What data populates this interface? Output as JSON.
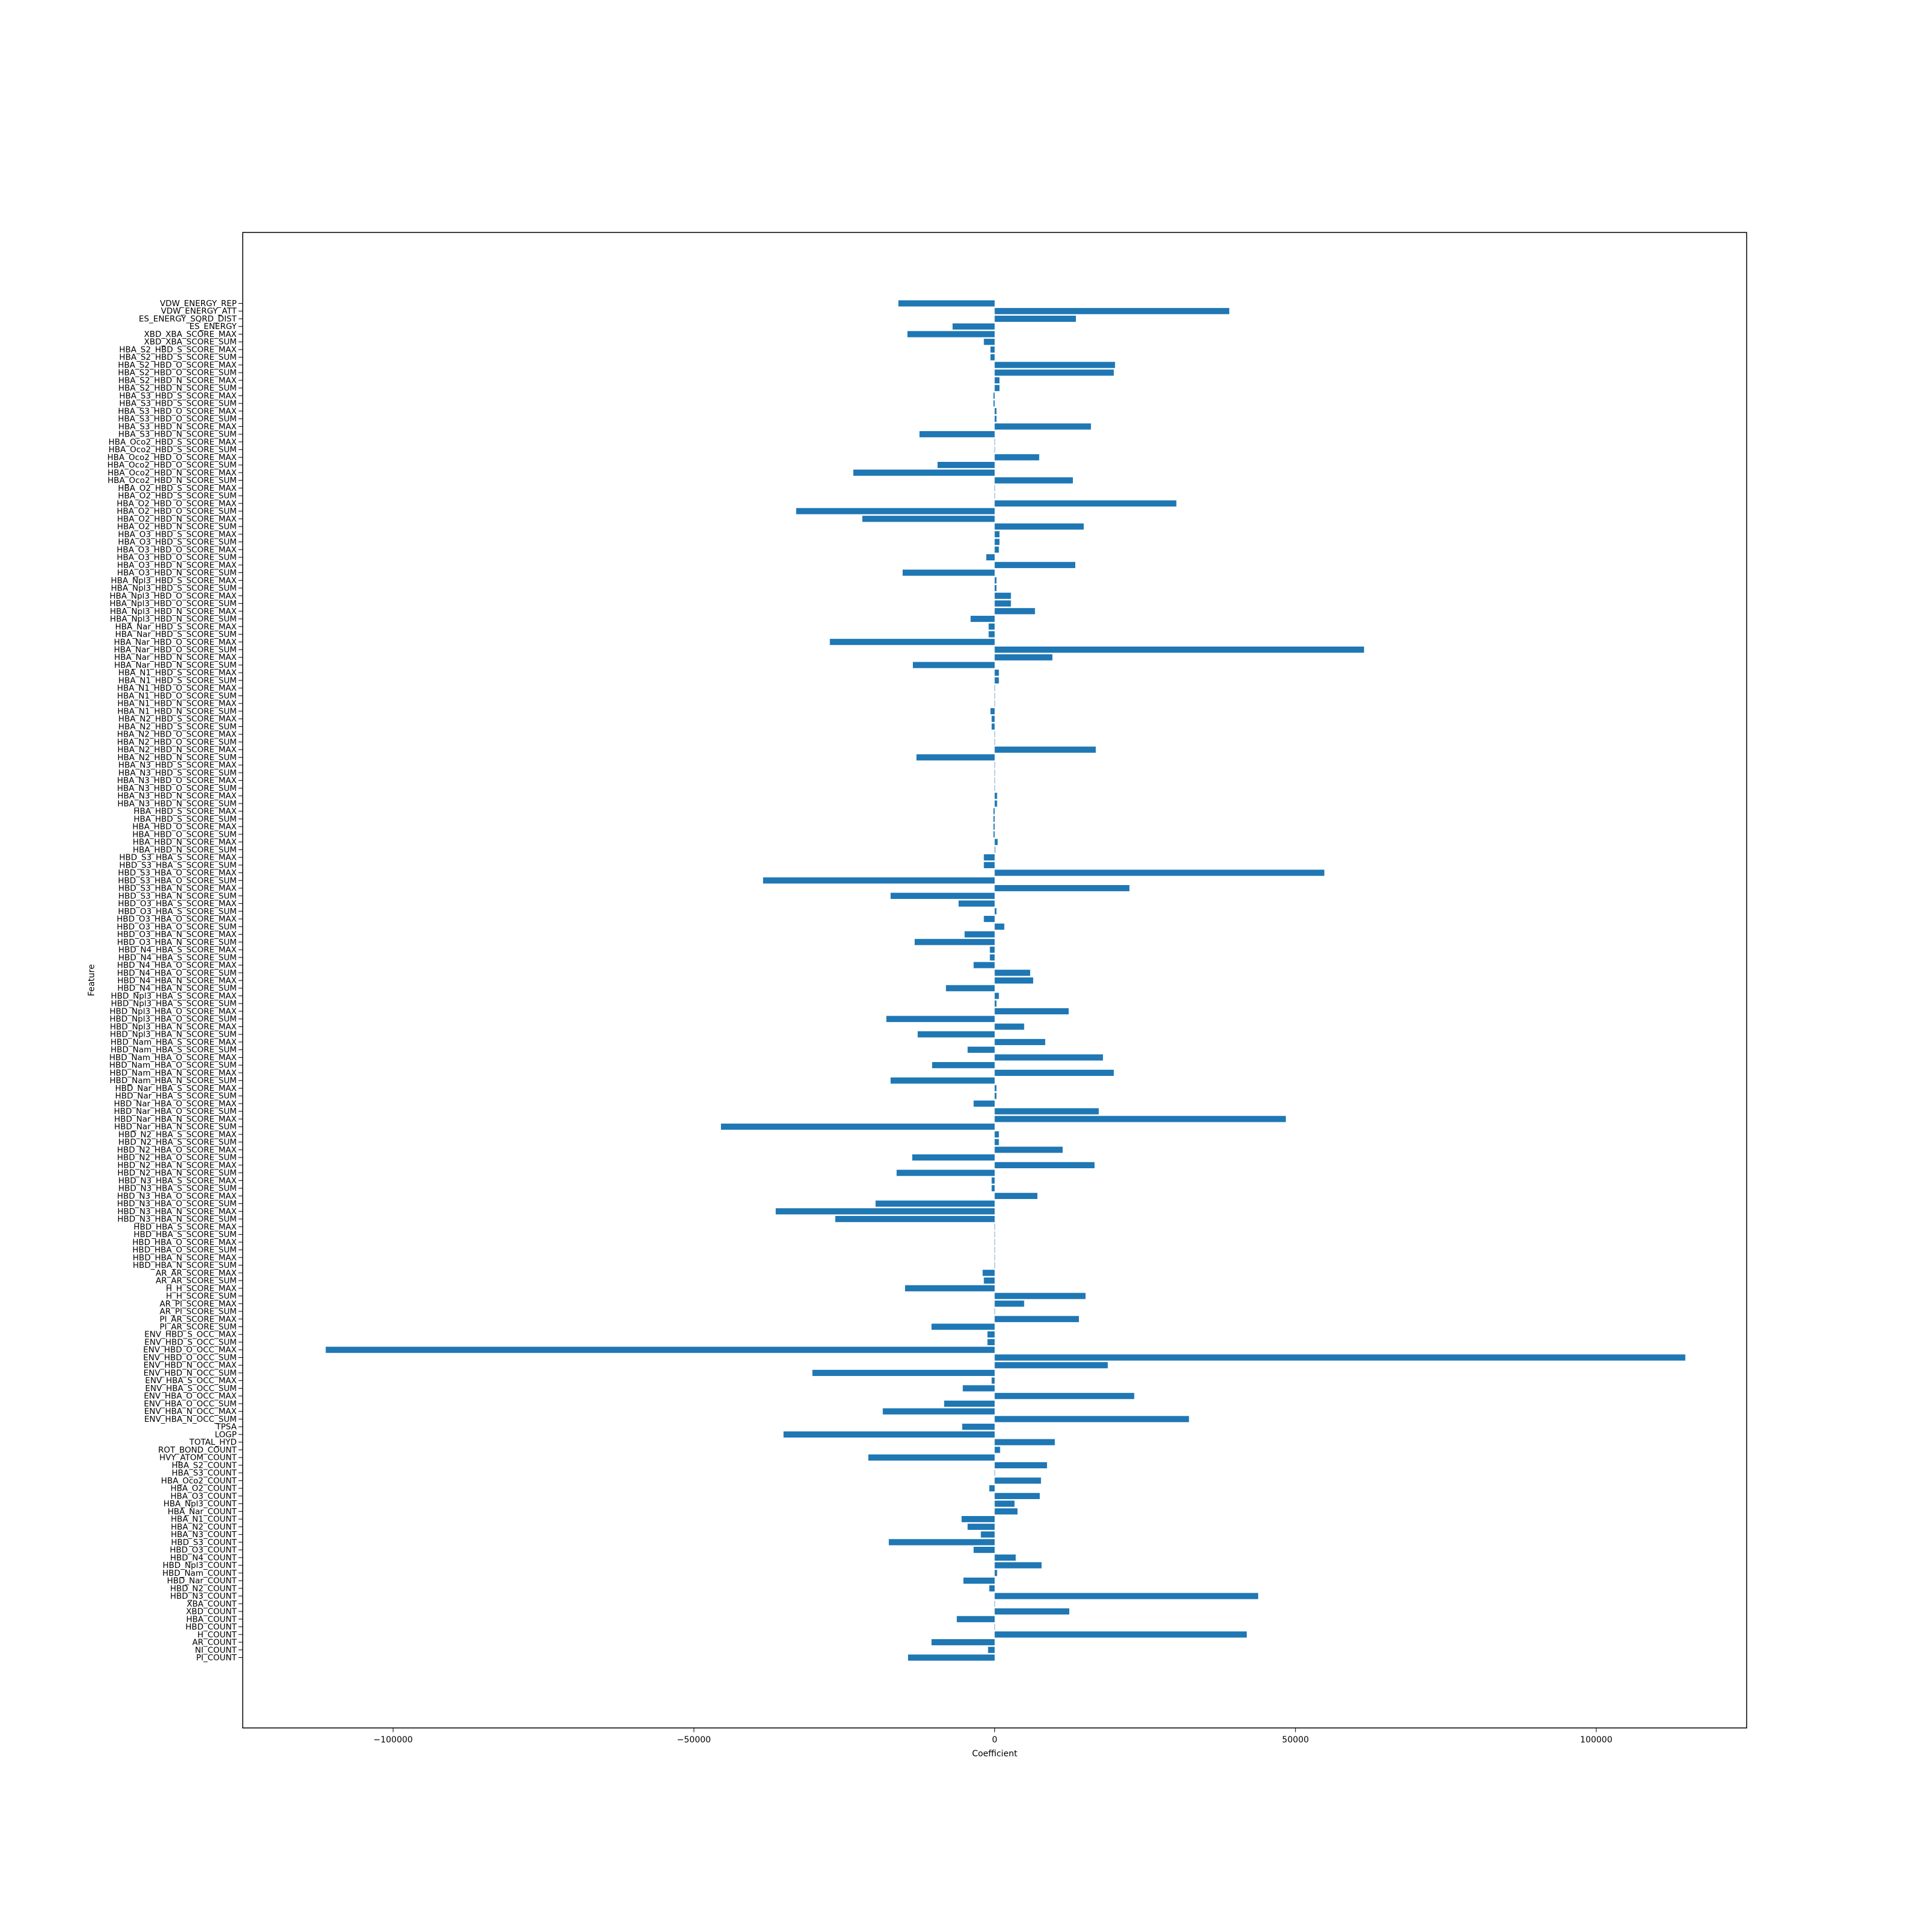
{
  "chart_data": {
    "type": "bar",
    "orientation": "horizontal",
    "xlabel": "Coefficient",
    "ylabel": "Feature",
    "xlim": [
      -125000,
      125000
    ],
    "xticks": [
      -100000,
      -50000,
      0,
      50000,
      100000
    ],
    "xtick_labels": [
      "−100000",
      "−50000",
      "0",
      "50000",
      "100000"
    ],
    "grid": false,
    "bar_color": "#1f77b4",
    "categories": [
      "VDW_ENERGY_REP",
      "VDW_ENERGY_ATT",
      "ES_ENERGY_SQRD_DIST",
      "ES_ENERGY",
      "XBD_XBA_SCORE_MAX",
      "XBD_XBA_SCORE_SUM",
      "HBA_S2_HBD_S_SCORE_MAX",
      "HBA_S2_HBD_S_SCORE_SUM",
      "HBA_S2_HBD_O_SCORE_MAX",
      "HBA_S2_HBD_O_SCORE_SUM",
      "HBA_S2_HBD_N_SCORE_MAX",
      "HBA_S2_HBD_N_SCORE_SUM",
      "HBA_S3_HBD_S_SCORE_MAX",
      "HBA_S3_HBD_S_SCORE_SUM",
      "HBA_S3_HBD_O_SCORE_MAX",
      "HBA_S3_HBD_O_SCORE_SUM",
      "HBA_S3_HBD_N_SCORE_MAX",
      "HBA_S3_HBD_N_SCORE_SUM",
      "HBA_Oco2_HBD_S_SCORE_MAX",
      "HBA_Oco2_HBD_S_SCORE_SUM",
      "HBA_Oco2_HBD_O_SCORE_MAX",
      "HBA_Oco2_HBD_O_SCORE_SUM",
      "HBA_Oco2_HBD_N_SCORE_MAX",
      "HBA_Oco2_HBD_N_SCORE_SUM",
      "HBA_O2_HBD_S_SCORE_MAX",
      "HBA_O2_HBD_S_SCORE_SUM",
      "HBA_O2_HBD_O_SCORE_MAX",
      "HBA_O2_HBD_O_SCORE_SUM",
      "HBA_O2_HBD_N_SCORE_MAX",
      "HBA_O2_HBD_N_SCORE_SUM",
      "HBA_O3_HBD_S_SCORE_MAX",
      "HBA_O3_HBD_S_SCORE_SUM",
      "HBA_O3_HBD_O_SCORE_MAX",
      "HBA_O3_HBD_O_SCORE_SUM",
      "HBA_O3_HBD_N_SCORE_MAX",
      "HBA_O3_HBD_N_SCORE_SUM",
      "HBA_Npl3_HBD_S_SCORE_MAX",
      "HBA_Npl3_HBD_S_SCORE_SUM",
      "HBA_Npl3_HBD_O_SCORE_MAX",
      "HBA_Npl3_HBD_O_SCORE_SUM",
      "HBA_Npl3_HBD_N_SCORE_MAX",
      "HBA_Npl3_HBD_N_SCORE_SUM",
      "HBA_Nar_HBD_S_SCORE_MAX",
      "HBA_Nar_HBD_S_SCORE_SUM",
      "HBA_Nar_HBD_O_SCORE_MAX",
      "HBA_Nar_HBD_O_SCORE_SUM",
      "HBA_Nar_HBD_N_SCORE_MAX",
      "HBA_Nar_HBD_N_SCORE_SUM",
      "HBA_N1_HBD_S_SCORE_MAX",
      "HBA_N1_HBD_S_SCORE_SUM",
      "HBA_N1_HBD_O_SCORE_MAX",
      "HBA_N1_HBD_O_SCORE_SUM",
      "HBA_N1_HBD_N_SCORE_MAX",
      "HBA_N1_HBD_N_SCORE_SUM",
      "HBA_N2_HBD_S_SCORE_MAX",
      "HBA_N2_HBD_S_SCORE_SUM",
      "HBA_N2_HBD_O_SCORE_MAX",
      "HBA_N2_HBD_O_SCORE_SUM",
      "HBA_N2_HBD_N_SCORE_MAX",
      "HBA_N2_HBD_N_SCORE_SUM",
      "HBA_N3_HBD_S_SCORE_MAX",
      "HBA_N3_HBD_S_SCORE_SUM",
      "HBA_N3_HBD_O_SCORE_MAX",
      "HBA_N3_HBD_O_SCORE_SUM",
      "HBA_N3_HBD_N_SCORE_MAX",
      "HBA_N3_HBD_N_SCORE_SUM",
      "HBA_HBD_S_SCORE_MAX",
      "HBA_HBD_S_SCORE_SUM",
      "HBA_HBD_O_SCORE_MAX",
      "HBA_HBD_O_SCORE_SUM",
      "HBA_HBD_N_SCORE_MAX",
      "HBA_HBD_N_SCORE_SUM",
      "HBD_S3_HBA_S_SCORE_MAX",
      "HBD_S3_HBA_S_SCORE_SUM",
      "HBD_S3_HBA_O_SCORE_MAX",
      "HBD_S3_HBA_O_SCORE_SUM",
      "HBD_S3_HBA_N_SCORE_MAX",
      "HBD_S3_HBA_N_SCORE_SUM",
      "HBD_O3_HBA_S_SCORE_MAX",
      "HBD_O3_HBA_S_SCORE_SUM",
      "HBD_O3_HBA_O_SCORE_MAX",
      "HBD_O3_HBA_O_SCORE_SUM",
      "HBD_O3_HBA_N_SCORE_MAX",
      "HBD_O3_HBA_N_SCORE_SUM",
      "HBD_N4_HBA_S_SCORE_MAX",
      "HBD_N4_HBA_S_SCORE_SUM",
      "HBD_N4_HBA_O_SCORE_MAX",
      "HBD_N4_HBA_O_SCORE_SUM",
      "HBD_N4_HBA_N_SCORE_MAX",
      "HBD_N4_HBA_N_SCORE_SUM",
      "HBD_Npl3_HBA_S_SCORE_MAX",
      "HBD_Npl3_HBA_S_SCORE_SUM",
      "HBD_Npl3_HBA_O_SCORE_MAX",
      "HBD_Npl3_HBA_O_SCORE_SUM",
      "HBD_Npl3_HBA_N_SCORE_MAX",
      "HBD_Npl3_HBA_N_SCORE_SUM",
      "HBD_Nam_HBA_S_SCORE_MAX",
      "HBD_Nam_HBA_S_SCORE_SUM",
      "HBD_Nam_HBA_O_SCORE_MAX",
      "HBD_Nam_HBA_O_SCORE_SUM",
      "HBD_Nam_HBA_N_SCORE_MAX",
      "HBD_Nam_HBA_N_SCORE_SUM",
      "HBD_Nar_HBA_S_SCORE_MAX",
      "HBD_Nar_HBA_S_SCORE_SUM",
      "HBD_Nar_HBA_O_SCORE_MAX",
      "HBD_Nar_HBA_O_SCORE_SUM",
      "HBD_Nar_HBA_N_SCORE_MAX",
      "HBD_Nar_HBA_N_SCORE_SUM",
      "HBD_N2_HBA_S_SCORE_MAX",
      "HBD_N2_HBA_S_SCORE_SUM",
      "HBD_N2_HBA_O_SCORE_MAX",
      "HBD_N2_HBA_O_SCORE_SUM",
      "HBD_N2_HBA_N_SCORE_MAX",
      "HBD_N2_HBA_N_SCORE_SUM",
      "HBD_N3_HBA_S_SCORE_MAX",
      "HBD_N3_HBA_S_SCORE_SUM",
      "HBD_N3_HBA_O_SCORE_MAX",
      "HBD_N3_HBA_O_SCORE_SUM",
      "HBD_N3_HBA_N_SCORE_MAX",
      "HBD_N3_HBA_N_SCORE_SUM",
      "HBD_HBA_S_SCORE_MAX",
      "HBD_HBA_S_SCORE_SUM",
      "HBD_HBA_O_SCORE_MAX",
      "HBD_HBA_O_SCORE_SUM",
      "HBD_HBA_N_SCORE_MAX",
      "HBD_HBA_N_SCORE_SUM",
      "AR_AR_SCORE_MAX",
      "AR_AR_SCORE_SUM",
      "H_H_SCORE_MAX",
      "H_H_SCORE_SUM",
      "AR_PI_SCORE_MAX",
      "AR_PI_SCORE_SUM",
      "PI_AR_SCORE_MAX",
      "PI_AR_SCORE_SUM",
      "ENV_HBD_S_OCC_MAX",
      "ENV_HBD_S_OCC_SUM",
      "ENV_HBD_O_OCC_MAX",
      "ENV_HBD_O_OCC_SUM",
      "ENV_HBD_N_OCC_MAX",
      "ENV_HBD_N_OCC_SUM",
      "ENV_HBA_S_OCC_MAX",
      "ENV_HBA_S_OCC_SUM",
      "ENV_HBA_O_OCC_MAX",
      "ENV_HBA_O_OCC_SUM",
      "ENV_HBA_N_OCC_MAX",
      "ENV_HBA_N_OCC_SUM",
      "TPSA",
      "LOGP",
      "TOTAL_HYD",
      "ROT_BOND_COUNT",
      "HVY_ATOM_COUNT",
      "HBA_S2_COUNT",
      "HBA_S3_COUNT",
      "HBA_Oco2_COUNT",
      "HBA_O2_COUNT",
      "HBA_O3_COUNT",
      "HBA_Npl3_COUNT",
      "HBA_Nar_COUNT",
      "HBA_N1_COUNT",
      "HBA_N2_COUNT",
      "HBA_N3_COUNT",
      "HBD_S3_COUNT",
      "HBD_O3_COUNT",
      "HBD_N4_COUNT",
      "HBD_Npl3_COUNT",
      "HBD_Nam_COUNT",
      "HBD_Nar_COUNT",
      "HBD_N2_COUNT",
      "HBD_N3_COUNT",
      "XBA_COUNT",
      "XBD_COUNT",
      "HBA_COUNT",
      "HBD_COUNT",
      "H_COUNT",
      "AR_COUNT",
      "NI_COUNT",
      "PI_COUNT"
    ],
    "values": [
      -16000,
      39000,
      13500,
      -7000,
      -14500,
      -1800,
      -700,
      -700,
      20000,
      19800,
      800,
      800,
      -200,
      -200,
      300,
      300,
      16000,
      -12500,
      0,
      0,
      7400,
      -9500,
      -23500,
      13000,
      0,
      0,
      30200,
      -33000,
      -22000,
      14800,
      800,
      800,
      700,
      -1400,
      13400,
      -15300,
      300,
      300,
      2700,
      2700,
      6700,
      -4000,
      -1000,
      -1000,
      -27400,
      61400,
      9600,
      -13600,
      700,
      700,
      0,
      0,
      0,
      -700,
      -500,
      -500,
      0,
      0,
      16800,
      -13000,
      0,
      0,
      0,
      0,
      400,
      400,
      -200,
      -200,
      -200,
      -200,
      500,
      100,
      -1800,
      -1800,
      54800,
      -38500,
      22400,
      -17300,
      -6000,
      300,
      -1800,
      1600,
      -5000,
      -13300,
      -800,
      -800,
      -3500,
      5900,
      6400,
      -8100,
      700,
      300,
      12300,
      -18000,
      4900,
      -12800,
      8400,
      -4500,
      18000,
      -10400,
      19800,
      -17300,
      300,
      300,
      -3500,
      17300,
      48400,
      -45500,
      700,
      700,
      11300,
      -13700,
      16600,
      -16300,
      -500,
      -500,
      7100,
      -19800,
      -36400,
      -26500,
      0,
      0,
      0,
      0,
      0,
      0,
      -2000,
      -1800,
      -14900,
      15100,
      4900,
      0,
      14000,
      -10500,
      -1200,
      -1200,
      -111200,
      114800,
      18800,
      -30300,
      -500,
      -5300,
      23200,
      -8400,
      -18600,
      32300,
      -5400,
      -35100,
      10000,
      900,
      -21000,
      8700,
      0,
      7700,
      -900,
      7500,
      3300,
      3800,
      -5500,
      -4500,
      -2300,
      -17600,
      -3500,
      3500,
      7800,
      400,
      -5200,
      -900,
      43800,
      0,
      12400,
      -6300,
      0,
      41900,
      -10500,
      -1100,
      -14400
    ]
  }
}
